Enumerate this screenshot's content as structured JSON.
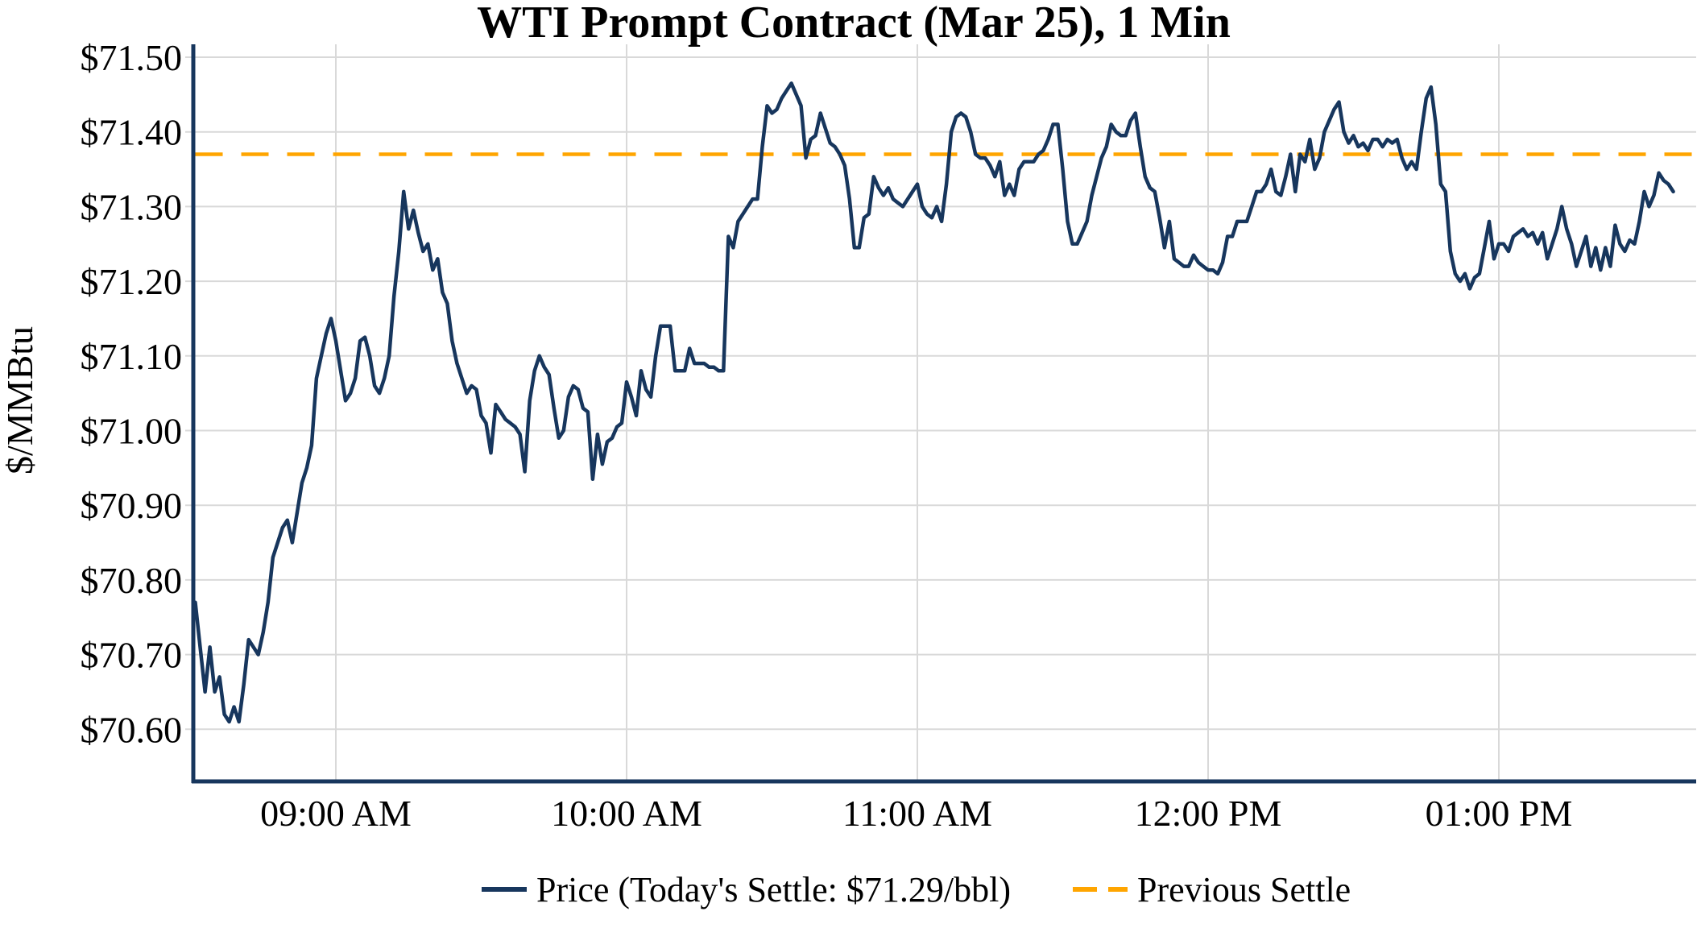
{
  "title": "WTI Prompt Contract (Mar 25), 1 Min",
  "y_axis_label": "$/MMBtu",
  "legend": {
    "price_label": "Price (Today's Settle: $71.29/bbl)",
    "prev_settle_label": "Previous Settle"
  },
  "colors": {
    "price_line": "#17365d",
    "previous_settle_line": "#FFA500",
    "grid": "#d9d9d9",
    "axis": "#17365d",
    "text": "#000000",
    "background": "#ffffff"
  },
  "chart_data": {
    "type": "line",
    "title": "WTI Prompt Contract (Mar 25), 1 Min",
    "xlabel": "",
    "ylabel": "$/MMBtu",
    "grid": true,
    "legend_position": "bottom",
    "x_start_time": "08:31 AM",
    "x_interval_minutes": 1,
    "x_tick_labels": [
      "09:00 AM",
      "10:00 AM",
      "11:00 AM",
      "12:00 PM",
      "01:00 PM"
    ],
    "x_tick_indices": [
      29,
      89,
      149,
      209,
      269
    ],
    "y_axis": {
      "min": 70.53,
      "max": 71.5,
      "tick_step": 0.1,
      "tick_values": [
        70.6,
        70.7,
        70.8,
        70.9,
        71.0,
        71.1,
        71.2,
        71.3,
        71.4,
        71.5
      ],
      "tick_labels": [
        "$70.60",
        "$70.70",
        "$70.80",
        "$70.90",
        "$71.00",
        "$71.10",
        "$71.20",
        "$71.30",
        "$71.40",
        "$71.50"
      ]
    },
    "previous_settle": 71.37,
    "todays_settle": 71.29,
    "series": [
      {
        "name": "Price",
        "values": [
          70.77,
          70.71,
          70.65,
          70.71,
          70.65,
          70.67,
          70.62,
          70.61,
          70.63,
          70.61,
          70.66,
          70.72,
          70.71,
          70.7,
          70.73,
          70.77,
          70.83,
          70.85,
          70.87,
          70.88,
          70.85,
          70.89,
          70.93,
          70.95,
          70.98,
          71.07,
          71.1,
          71.13,
          71.15,
          71.12,
          71.08,
          71.04,
          71.05,
          71.07,
          71.12,
          71.125,
          71.1,
          71.06,
          71.05,
          71.07,
          71.1,
          71.18,
          71.24,
          71.32,
          71.27,
          71.295,
          71.265,
          71.24,
          71.25,
          71.215,
          71.23,
          71.185,
          71.17,
          71.12,
          71.09,
          71.07,
          71.05,
          71.06,
          71.055,
          71.02,
          71.01,
          70.97,
          71.035,
          71.025,
          71.015,
          71.01,
          71.005,
          70.995,
          70.945,
          71.04,
          71.08,
          71.1,
          71.085,
          71.075,
          71.03,
          70.99,
          71.0,
          71.045,
          71.06,
          71.055,
          71.03,
          71.025,
          70.935,
          70.995,
          70.955,
          70.985,
          70.99,
          71.005,
          71.01,
          71.065,
          71.045,
          71.02,
          71.08,
          71.055,
          71.045,
          71.1,
          71.14,
          71.14,
          71.14,
          71.08,
          71.08,
          71.08,
          71.11,
          71.09,
          71.09,
          71.09,
          71.085,
          71.085,
          71.08,
          71.08,
          71.26,
          71.245,
          71.28,
          71.29,
          71.3,
          71.31,
          71.31,
          71.38,
          71.435,
          71.425,
          71.43,
          71.445,
          71.455,
          71.465,
          71.45,
          71.435,
          71.365,
          71.39,
          71.395,
          71.425,
          71.405,
          71.385,
          71.38,
          71.37,
          71.355,
          71.31,
          71.245,
          71.245,
          71.285,
          71.29,
          71.34,
          71.325,
          71.315,
          71.325,
          71.31,
          71.305,
          71.3,
          71.31,
          71.32,
          71.33,
          71.3,
          71.29,
          71.285,
          71.3,
          71.28,
          71.33,
          71.4,
          71.42,
          71.425,
          71.42,
          71.4,
          71.37,
          71.365,
          71.365,
          71.355,
          71.34,
          71.36,
          71.315,
          71.33,
          71.315,
          71.35,
          71.36,
          71.36,
          71.36,
          71.37,
          71.375,
          71.39,
          71.41,
          71.41,
          71.35,
          71.28,
          71.25,
          71.25,
          71.265,
          71.28,
          71.315,
          71.34,
          71.365,
          71.38,
          71.41,
          71.4,
          71.395,
          71.395,
          71.415,
          71.425,
          71.38,
          71.34,
          71.325,
          71.32,
          71.285,
          71.245,
          71.28,
          71.23,
          71.225,
          71.22,
          71.22,
          71.235,
          71.225,
          71.22,
          71.215,
          71.215,
          71.21,
          71.225,
          71.26,
          71.26,
          71.28,
          71.28,
          71.28,
          71.3,
          71.32,
          71.32,
          71.33,
          71.35,
          71.32,
          71.315,
          71.34,
          71.37,
          71.32,
          71.37,
          71.36,
          71.39,
          71.35,
          71.365,
          71.4,
          71.415,
          71.43,
          71.44,
          71.4,
          71.385,
          71.395,
          71.38,
          71.385,
          71.375,
          71.39,
          71.39,
          71.38,
          71.39,
          71.385,
          71.39,
          71.365,
          71.35,
          71.36,
          71.35,
          71.4,
          71.445,
          71.46,
          71.41,
          71.33,
          71.32,
          71.24,
          71.21,
          71.2,
          71.21,
          71.19,
          71.205,
          71.21,
          71.245,
          71.28,
          71.23,
          71.25,
          71.25,
          71.24,
          71.26,
          71.265,
          71.27,
          71.26,
          71.265,
          71.25,
          71.265,
          71.23,
          71.25,
          71.27,
          71.3,
          71.27,
          71.25,
          71.22,
          71.24,
          71.26,
          71.22,
          71.245,
          71.215,
          71.245,
          71.22,
          71.275,
          71.25,
          71.24,
          71.255,
          71.25,
          71.28,
          71.32,
          71.3,
          71.315,
          71.345,
          71.335,
          71.33,
          71.32
        ]
      }
    ]
  }
}
